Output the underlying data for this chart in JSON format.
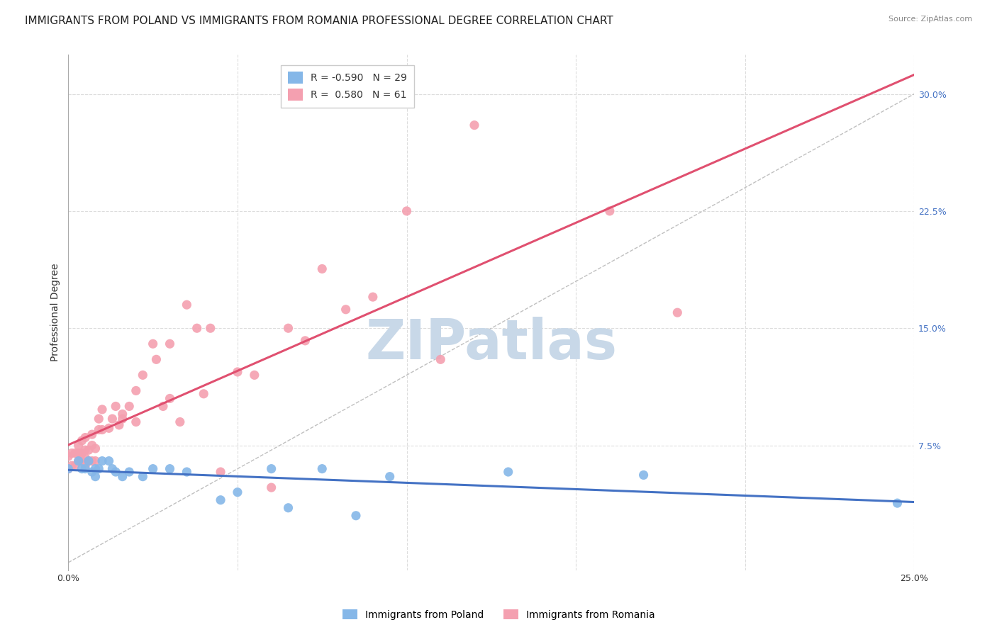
{
  "title": "IMMIGRANTS FROM POLAND VS IMMIGRANTS FROM ROMANIA PROFESSIONAL DEGREE CORRELATION CHART",
  "source": "Source: ZipAtlas.com",
  "ylabel": "Professional Degree",
  "xlim": [
    0.0,
    0.25
  ],
  "ylim": [
    -0.005,
    0.325
  ],
  "yticks_right": [
    0.075,
    0.15,
    0.225,
    0.3
  ],
  "ytick_labels_right": [
    "7.5%",
    "15.0%",
    "22.5%",
    "30.0%"
  ],
  "grid_color": "#dddddd",
  "bg_color": "#ffffff",
  "poland_color": "#85b7e8",
  "romania_color": "#f4a0b0",
  "poland_trend_color": "#4472c4",
  "romania_trend_color": "#e05070",
  "poland_R": -0.59,
  "poland_N": 29,
  "romania_R": 0.58,
  "romania_N": 61,
  "legend_label_poland": "Immigrants from Poland",
  "legend_label_romania": "Immigrants from Romania",
  "poland_scatter_x": [
    0.0,
    0.003,
    0.004,
    0.005,
    0.006,
    0.007,
    0.008,
    0.008,
    0.009,
    0.01,
    0.012,
    0.013,
    0.014,
    0.016,
    0.018,
    0.022,
    0.025,
    0.03,
    0.035,
    0.045,
    0.05,
    0.06,
    0.065,
    0.075,
    0.085,
    0.095,
    0.13,
    0.17,
    0.245
  ],
  "poland_scatter_y": [
    0.06,
    0.065,
    0.06,
    0.06,
    0.065,
    0.058,
    0.06,
    0.055,
    0.06,
    0.065,
    0.065,
    0.06,
    0.058,
    0.055,
    0.058,
    0.055,
    0.06,
    0.06,
    0.058,
    0.04,
    0.045,
    0.06,
    0.035,
    0.06,
    0.03,
    0.055,
    0.058,
    0.056,
    0.038
  ],
  "romania_scatter_x": [
    0.0,
    0.0,
    0.001,
    0.001,
    0.002,
    0.002,
    0.003,
    0.003,
    0.003,
    0.004,
    0.004,
    0.004,
    0.005,
    0.005,
    0.005,
    0.005,
    0.006,
    0.006,
    0.007,
    0.007,
    0.007,
    0.008,
    0.008,
    0.009,
    0.009,
    0.01,
    0.01,
    0.012,
    0.013,
    0.014,
    0.015,
    0.016,
    0.016,
    0.018,
    0.02,
    0.02,
    0.022,
    0.025,
    0.026,
    0.028,
    0.03,
    0.03,
    0.033,
    0.035,
    0.038,
    0.04,
    0.042,
    0.045,
    0.05,
    0.055,
    0.06,
    0.065,
    0.07,
    0.075,
    0.082,
    0.09,
    0.1,
    0.11,
    0.12,
    0.16,
    0.18
  ],
  "romania_scatter_y": [
    0.06,
    0.068,
    0.062,
    0.07,
    0.062,
    0.07,
    0.065,
    0.07,
    0.075,
    0.065,
    0.07,
    0.078,
    0.062,
    0.067,
    0.072,
    0.08,
    0.065,
    0.072,
    0.065,
    0.075,
    0.082,
    0.065,
    0.073,
    0.085,
    0.092,
    0.085,
    0.098,
    0.086,
    0.092,
    0.1,
    0.088,
    0.092,
    0.095,
    0.1,
    0.09,
    0.11,
    0.12,
    0.14,
    0.13,
    0.1,
    0.14,
    0.105,
    0.09,
    0.165,
    0.15,
    0.108,
    0.15,
    0.058,
    0.122,
    0.12,
    0.048,
    0.15,
    0.142,
    0.188,
    0.162,
    0.17,
    0.225,
    0.13,
    0.28,
    0.225,
    0.16
  ],
  "watermark_text": "ZIPatlas",
  "watermark_color": "#c8d8e8",
  "title_fontsize": 11,
  "axis_label_fontsize": 10,
  "tick_fontsize": 9,
  "legend_fontsize": 10
}
